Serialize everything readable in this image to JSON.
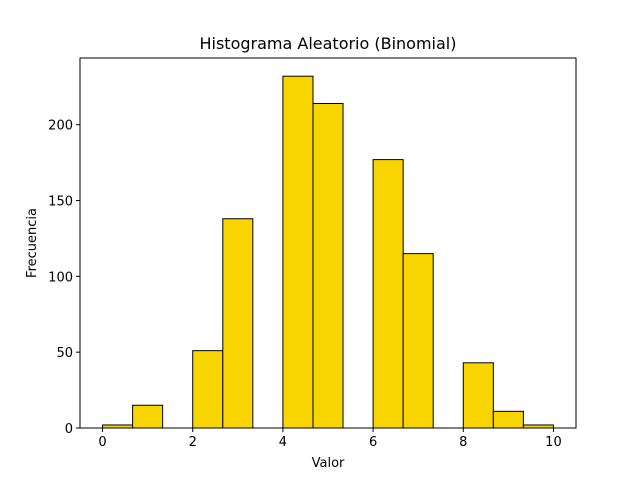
{
  "chart_data": {
    "type": "bar",
    "title": "Histograma Aleatorio (Binomial)",
    "xlabel": "Valor",
    "ylabel": "Frecuencia",
    "xlim": [
      -0.5,
      10.5
    ],
    "ylim": [
      0,
      244
    ],
    "xticks": [
      0,
      2,
      4,
      6,
      8,
      10
    ],
    "yticks": [
      0,
      50,
      100,
      150,
      200
    ],
    "bar_color": "#f8d500",
    "edge_color": "#000000",
    "bins": [
      {
        "start": 0.0,
        "end": 0.667,
        "value": 2
      },
      {
        "start": 0.667,
        "end": 1.333,
        "value": 15
      },
      {
        "start": 1.333,
        "end": 2.0,
        "value": 0
      },
      {
        "start": 2.0,
        "end": 2.667,
        "value": 51
      },
      {
        "start": 2.667,
        "end": 3.333,
        "value": 138
      },
      {
        "start": 3.333,
        "end": 4.0,
        "value": 0
      },
      {
        "start": 4.0,
        "end": 4.667,
        "value": 232
      },
      {
        "start": 4.667,
        "end": 5.333,
        "value": 214
      },
      {
        "start": 5.333,
        "end": 6.0,
        "value": 0
      },
      {
        "start": 6.0,
        "end": 6.667,
        "value": 177
      },
      {
        "start": 6.667,
        "end": 7.333,
        "value": 115
      },
      {
        "start": 7.333,
        "end": 8.0,
        "value": 0
      },
      {
        "start": 8.0,
        "end": 8.667,
        "value": 43
      },
      {
        "start": 8.667,
        "end": 9.333,
        "value": 11
      },
      {
        "start": 9.333,
        "end": 10.0,
        "value": 2
      }
    ]
  }
}
